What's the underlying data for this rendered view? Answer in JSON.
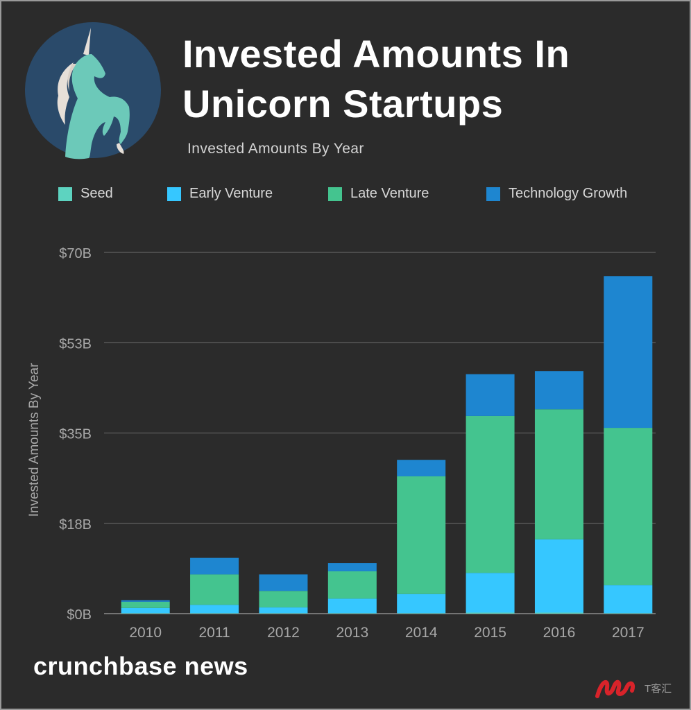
{
  "header": {
    "title": "Invested Amounts In Unicorn Startups",
    "subtitle": "Invested Amounts By Year"
  },
  "logo": {
    "icon": "unicorn-icon",
    "circle_color": "#2a4a6a",
    "unicorn_color": "#6cc9b9"
  },
  "footer": {
    "brand": "crunchbase news",
    "watermark_text": "T客汇",
    "watermark_icon": "tkehui-logo-icon"
  },
  "chart_data": {
    "type": "bar",
    "stacked": true,
    "categories": [
      "2010",
      "2011",
      "2012",
      "2013",
      "2014",
      "2015",
      "2016",
      "2017"
    ],
    "series": [
      {
        "name": "Seed",
        "color": "#5dd3c0",
        "values": [
          0.1,
          0.1,
          0.1,
          0.1,
          0.1,
          0.2,
          0.2,
          0.1
        ]
      },
      {
        "name": "Early Venture",
        "color": "#36c7ff",
        "values": [
          1.0,
          1.6,
          1.1,
          2.8,
          3.7,
          7.7,
          14.2,
          5.4
        ]
      },
      {
        "name": "Late Venture",
        "color": "#44c48f",
        "values": [
          1.2,
          5.9,
          3.2,
          5.3,
          22.8,
          30.4,
          25.2,
          30.5
        ]
      },
      {
        "name": "Technology Growth",
        "color": "#1e86d0",
        "values": [
          0.3,
          3.2,
          3.2,
          1.6,
          3.2,
          8.1,
          7.4,
          29.4
        ]
      }
    ],
    "ylabel": "Invested Amounts By Year",
    "xlabel": "",
    "ylim": [
      0,
      70
    ],
    "yticks": [
      0,
      17.5,
      35,
      52.5,
      70
    ],
    "ytick_labels": [
      "$0B",
      "$18B",
      "$35B",
      "$53B",
      "$70B"
    ],
    "grid": true,
    "legend_position": "top"
  }
}
